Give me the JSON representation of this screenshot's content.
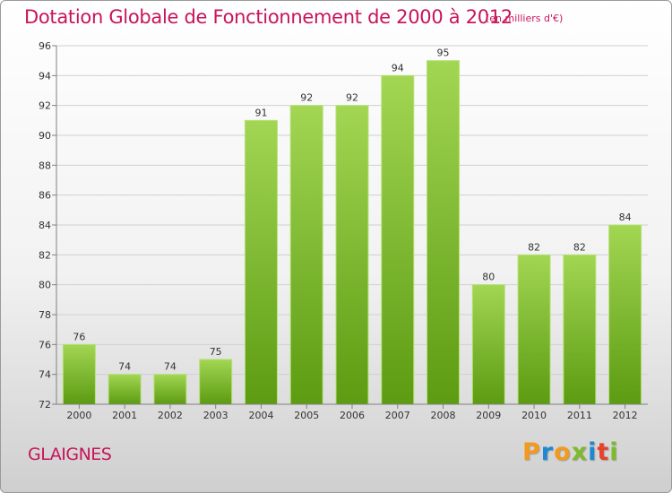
{
  "header": {
    "title": "Dotation Globale de Fonctionnement de 2000 à 2012",
    "unit": "(en milliers d'€)"
  },
  "footer": {
    "commune": "GLAIGNES",
    "logo_text": "Proxiti"
  },
  "colors": {
    "title": "#c8145a",
    "bar_light": "#9fd44f",
    "bar_dark": "#5c9e12",
    "axis": "#808080",
    "grid": "#d0d0d0"
  },
  "chart_data": {
    "type": "bar",
    "title": "Dotation Globale de Fonctionnement de 2000 à 2012",
    "xlabel": "",
    "ylabel": "",
    "ylim": [
      72,
      96
    ],
    "yticks": [
      72,
      74,
      76,
      78,
      80,
      82,
      84,
      86,
      88,
      90,
      92,
      94,
      96
    ],
    "categories": [
      "2000",
      "2001",
      "2002",
      "2003",
      "2004",
      "2005",
      "2006",
      "2007",
      "2008",
      "2009",
      "2010",
      "2011",
      "2012"
    ],
    "values": [
      76,
      74,
      74,
      75,
      91,
      92,
      92,
      94,
      95,
      80,
      82,
      82,
      84
    ],
    "grid": true,
    "legend": "none"
  }
}
